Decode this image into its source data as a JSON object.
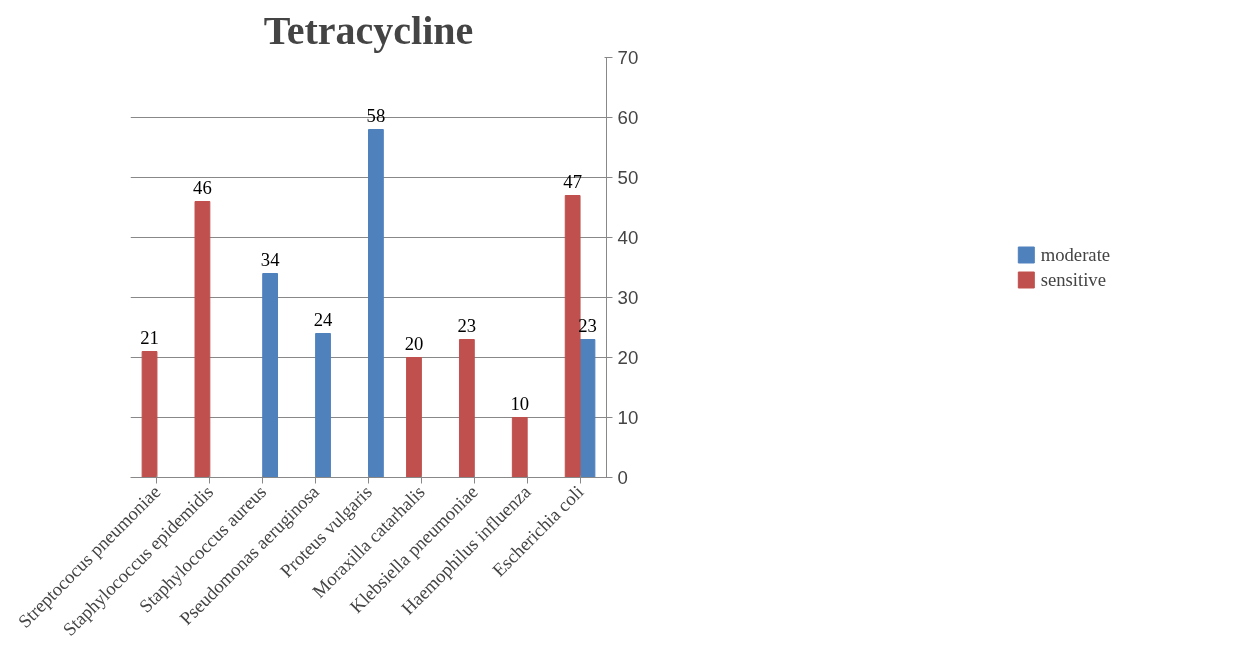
{
  "chart_data": {
    "type": "bar",
    "title": "Tetracycline",
    "categories": [
      "Streptococus pneumoniae",
      "Staphylococcus epidemidis",
      "Staphylococcus aureus",
      "Pseudomonas aeruginosa",
      "Proteus vulgaris",
      "Moraxilla catarhalis",
      "Klebsiella pneumoniae",
      "Haemophilus influenza",
      "Escherichia coli"
    ],
    "series": [
      {
        "name": "moderate",
        "color": "#4f81bd",
        "values": [
          null,
          null,
          34,
          24,
          58,
          null,
          null,
          null,
          23
        ]
      },
      {
        "name": "sensitive",
        "color": "#c0504d",
        "values": [
          21,
          46,
          null,
          null,
          null,
          20,
          23,
          10,
          47
        ]
      }
    ],
    "ylim": [
      0,
      70
    ],
    "yticks": [
      0,
      10,
      20,
      30,
      40,
      50,
      60,
      70
    ],
    "grid": "y",
    "legend": "right",
    "data_labels": true
  }
}
